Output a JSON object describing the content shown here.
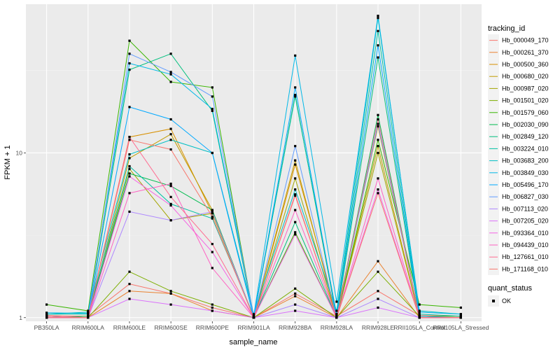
{
  "chart_data": {
    "type": "line",
    "xlabel": "sample_name",
    "ylabel": "FPKM + 1",
    "y_scale": "log10",
    "ylim": [
      0.95,
      80
    ],
    "y_ticks": [
      {
        "value": 1,
        "label": "1"
      },
      {
        "value": 10,
        "label": "10"
      }
    ],
    "categories": [
      "PB350LA",
      "RRIM600LA",
      "RRIM600LE",
      "RRIM600SE",
      "RRIM600PE",
      "RRIM901LA",
      "RRIM928BA",
      "RRIM928LA",
      "RRIM928LE",
      "RRII105LA_Control",
      "RRII105LA_Stressed"
    ],
    "legend_title": "tracking_id",
    "shape_legend": {
      "title": "quant_status",
      "entries": [
        "OK"
      ]
    },
    "series": [
      {
        "name": "Hb_000049_170",
        "color": "#F8766D",
        "values": [
          1.03,
          1.02,
          1.6,
          1.4,
          1.15,
          1.0,
          1.4,
          1.02,
          1.45,
          1.03,
          1.02
        ]
      },
      {
        "name": "Hb_000261_370",
        "color": "#EA8331",
        "values": [
          1.0,
          1.0,
          1.45,
          1.4,
          1.1,
          1.0,
          1.35,
          1.0,
          2.2,
          1.0,
          1.0
        ]
      },
      {
        "name": "Hb_000500_360",
        "color": "#D89000",
        "values": [
          1.02,
          1.0,
          12.5,
          14.0,
          4.3,
          1.0,
          8.5,
          1.05,
          14.5,
          1.02,
          1.0
        ]
      },
      {
        "name": "Hb_000680_020",
        "color": "#C09B00",
        "values": [
          1.0,
          1.0,
          9.3,
          13.0,
          4.5,
          1.0,
          9.0,
          1.0,
          11.0,
          1.0,
          1.0
        ]
      },
      {
        "name": "Hb_000987_020",
        "color": "#A3A500",
        "values": [
          1.0,
          1.0,
          8.0,
          3.9,
          4.3,
          1.0,
          7.0,
          1.0,
          10.0,
          1.0,
          1.0
        ]
      },
      {
        "name": "Hb_001501_020",
        "color": "#7CAE00",
        "values": [
          1.02,
          1.0,
          1.9,
          1.45,
          1.2,
          1.0,
          1.5,
          1.0,
          1.9,
          1.02,
          1.02
        ]
      },
      {
        "name": "Hb_001579_060",
        "color": "#39B600",
        "values": [
          1.2,
          1.1,
          48.0,
          27.0,
          25.0,
          1.0,
          3.3,
          1.0,
          12.0,
          1.2,
          1.15
        ]
      },
      {
        "name": "Hb_002030_090",
        "color": "#00BB4E",
        "values": [
          1.0,
          1.02,
          7.5,
          6.3,
          4.5,
          1.0,
          22.5,
          1.0,
          17.0,
          1.0,
          1.0
        ]
      },
      {
        "name": "Hb_002849_120",
        "color": "#00BF7D",
        "values": [
          1.0,
          1.0,
          32.0,
          40.0,
          18.0,
          1.0,
          3.8,
          1.0,
          38.0,
          1.0,
          1.0
        ]
      },
      {
        "name": "Hb_003224_010",
        "color": "#00C1A3",
        "values": [
          1.05,
          1.05,
          8.3,
          4.9,
          4.0,
          1.02,
          22.0,
          1.05,
          55.0,
          1.05,
          1.02
        ]
      },
      {
        "name": "Hb_003683_200",
        "color": "#00BFC4",
        "values": [
          1.05,
          1.08,
          9.8,
          12.0,
          10.0,
          1.05,
          6.0,
          1.1,
          66.0,
          1.1,
          1.05
        ]
      },
      {
        "name": "Hb_003849_030",
        "color": "#00B8E7",
        "values": [
          1.07,
          1.06,
          35.0,
          30.0,
          18.5,
          1.03,
          39.0,
          1.25,
          68.0,
          1.08,
          1.05
        ]
      },
      {
        "name": "Hb_005496_170",
        "color": "#00A9FF",
        "values": [
          1.02,
          1.0,
          19.0,
          16.0,
          10.0,
          1.0,
          25.0,
          1.02,
          45.0,
          1.02,
          1.0
        ]
      },
      {
        "name": "Hb_006827_030",
        "color": "#619CFF",
        "values": [
          1.0,
          1.0,
          40.0,
          31.0,
          22.0,
          1.0,
          11.0,
          1.0,
          15.0,
          1.0,
          1.0
        ]
      },
      {
        "name": "Hb_007113_020",
        "color": "#AE87FF",
        "values": [
          1.0,
          1.0,
          4.4,
          3.9,
          4.4,
          1.0,
          1.2,
          1.0,
          1.3,
          1.0,
          1.0
        ]
      },
      {
        "name": "Hb_007205_020",
        "color": "#DB72FB",
        "values": [
          1.0,
          1.0,
          1.3,
          1.2,
          1.1,
          1.0,
          1.1,
          1.0,
          1.15,
          1.0,
          1.0
        ]
      },
      {
        "name": "Hb_093364_010",
        "color": "#F564E3",
        "values": [
          1.0,
          1.0,
          7.2,
          4.8,
          2.5,
          1.0,
          3.2,
          1.0,
          6.0,
          1.0,
          1.0
        ]
      },
      {
        "name": "Hb_094439_010",
        "color": "#FF61C3",
        "values": [
          1.0,
          1.0,
          5.7,
          6.5,
          2.0,
          1.0,
          4.5,
          1.0,
          7.0,
          1.0,
          1.0
        ]
      },
      {
        "name": "Hb_127661_010",
        "color": "#FF6C91",
        "values": [
          1.02,
          1.0,
          12.5,
          5.4,
          2.8,
          1.0,
          5.6,
          1.0,
          16.0,
          1.0,
          1.0
        ]
      },
      {
        "name": "Hb_171168_010",
        "color": "#F8766D",
        "values": [
          1.0,
          1.0,
          12.0,
          10.5,
          4.1,
          1.0,
          5.5,
          1.0,
          5.7,
          1.0,
          1.0
        ]
      }
    ]
  }
}
